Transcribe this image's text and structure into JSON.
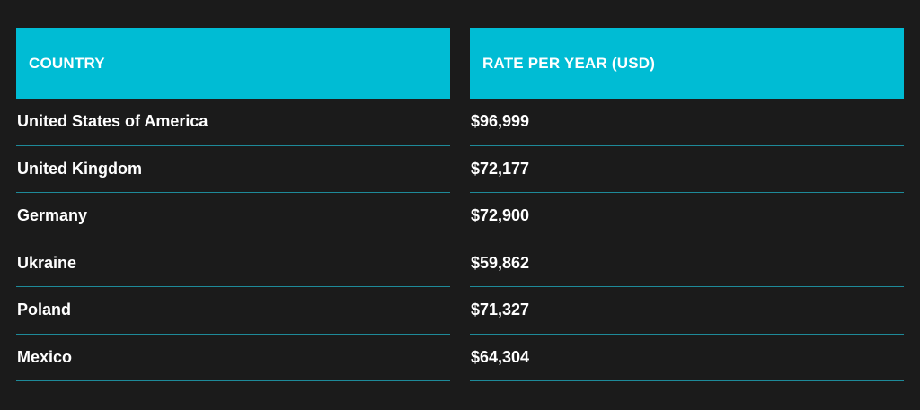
{
  "chart_data": {
    "type": "table",
    "columns": [
      "COUNTRY",
      "RATE PER YEAR (USD)"
    ],
    "rows": [
      {
        "country": "United States of America",
        "rate": "$96,999"
      },
      {
        "country": "United Kingdom",
        "rate": "$72,177"
      },
      {
        "country": "Germany",
        "rate": "$72,900"
      },
      {
        "country": "Ukraine",
        "rate": "$59,862"
      },
      {
        "country": "Poland",
        "rate": "$71,327"
      },
      {
        "country": "Mexico",
        "rate": "$64,304"
      }
    ]
  },
  "colors": {
    "background": "#1b1b1b",
    "header": "#00bcd4",
    "divider": "#1e8a99",
    "text": "#ffffff"
  }
}
